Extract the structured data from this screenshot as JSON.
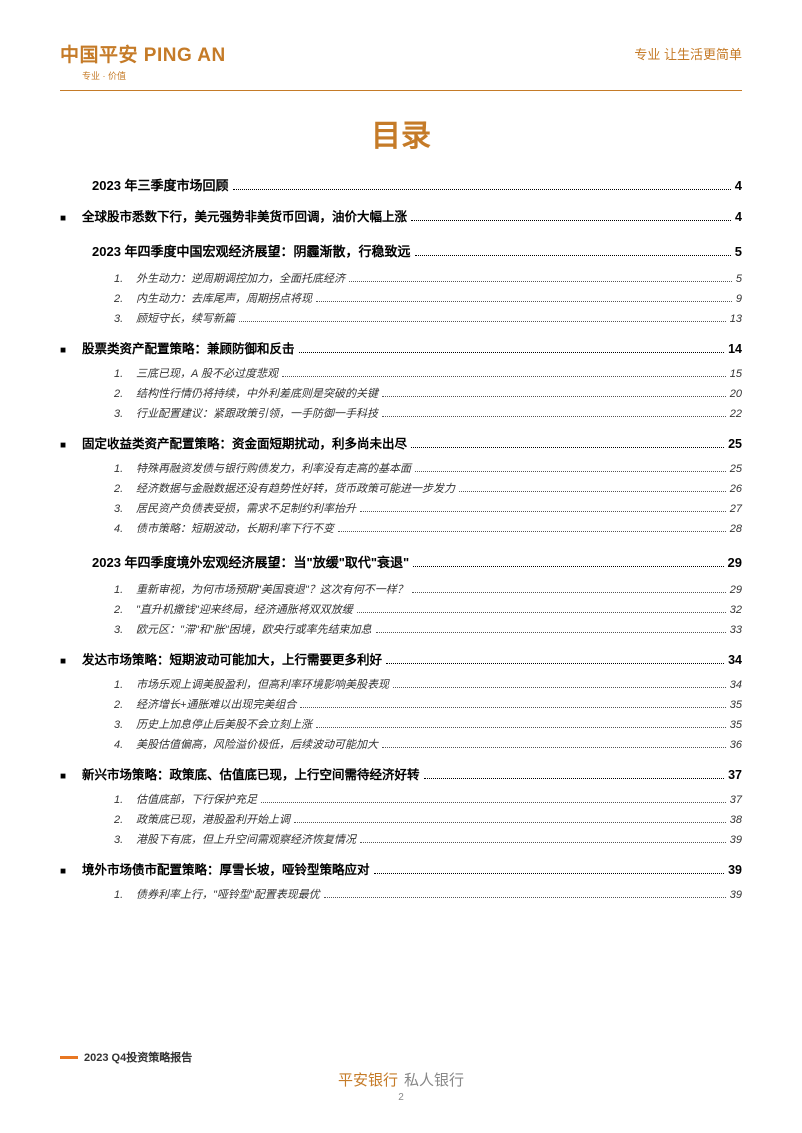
{
  "header": {
    "logo_main": "中国平安 PING AN",
    "logo_sub": "专业 · 价值",
    "slogan": "专业 让生活更简单"
  },
  "title": "目录",
  "toc": [
    {
      "level": 1,
      "text": "2023 年三季度市场回顾",
      "page": "4"
    },
    {
      "level": 2,
      "text": "全球股市悉数下行，美元强势非美货币回调，油价大幅上涨",
      "page": "4"
    },
    {
      "level": 1,
      "text": "2023 年四季度中国宏观经济展望：阴霾渐散，行稳致远",
      "page": "5"
    },
    {
      "level": 3,
      "num": "1.",
      "text": "外生动力：逆周期调控加力，全面托底经济",
      "page": "5"
    },
    {
      "level": 3,
      "num": "2.",
      "text": "内生动力：去库尾声，周期拐点将现",
      "page": "9"
    },
    {
      "level": 3,
      "num": "3.",
      "text": "顾短守长，续写新篇",
      "page": "13"
    },
    {
      "level": 2,
      "text": "股票类资产配置策略：兼顾防御和反击",
      "page": "14"
    },
    {
      "level": 3,
      "num": "1.",
      "text": "三底已现，A 股不必过度悲观",
      "page": "15"
    },
    {
      "level": 3,
      "num": "2.",
      "text": "结构性行情仍将持续，中外利差底则是突破的关键",
      "page": "20"
    },
    {
      "level": 3,
      "num": "3.",
      "text": "行业配置建议：紧跟政策引领，一手防御一手科技",
      "page": "22"
    },
    {
      "level": 2,
      "text": "固定收益类资产配置策略：资金面短期扰动，利多尚未出尽",
      "page": "25"
    },
    {
      "level": 3,
      "num": "1.",
      "text": "特殊再融资发债与银行购债发力，利率没有走高的基本面",
      "page": "25"
    },
    {
      "level": 3,
      "num": "2.",
      "text": "经济数据与金融数据还没有趋势性好转，货币政策可能进一步发力",
      "page": "26"
    },
    {
      "level": 3,
      "num": "3.",
      "text": "居民资产负债表受损，需求不足制约利率抬升",
      "page": "27"
    },
    {
      "level": 3,
      "num": "4.",
      "text": "债市策略：短期波动，长期利率下行不变",
      "page": "28"
    },
    {
      "level": 1,
      "text": "2023 年四季度境外宏观经济展望：当\"放缓\"取代\"衰退\"",
      "page": "29"
    },
    {
      "level": 3,
      "num": "1.",
      "text": "重新审视，为何市场预期\"美国衰退\"？这次有何不一样？",
      "page": "29"
    },
    {
      "level": 3,
      "num": "2.",
      "text": "\"直升机撒钱\"迎来终局，经济通胀将双双放缓",
      "page": "32"
    },
    {
      "level": 3,
      "num": "3.",
      "text": "欧元区：\"滞\"和\"胀\"困境，欧央行或率先结束加息",
      "page": "33"
    },
    {
      "level": 2,
      "text": "发达市场策略：短期波动可能加大，上行需要更多利好",
      "page": "34"
    },
    {
      "level": 3,
      "num": "1.",
      "text": "市场乐观上调美股盈利，但高利率环境影响美股表现",
      "page": "34"
    },
    {
      "level": 3,
      "num": "2.",
      "text": "经济增长+通胀难以出现完美组合",
      "page": "35"
    },
    {
      "level": 3,
      "num": "3.",
      "text": "历史上加息停止后美股不会立刻上涨",
      "page": "35"
    },
    {
      "level": 3,
      "num": "4.",
      "text": "美股估值偏高，风险溢价极低，后续波动可能加大",
      "page": "36"
    },
    {
      "level": 2,
      "text": "新兴市场策略：政策底、估值底已现，上行空间需待经济好转",
      "page": "37"
    },
    {
      "level": 3,
      "num": "1.",
      "text": "估值底部，下行保护充足",
      "page": "37"
    },
    {
      "level": 3,
      "num": "2.",
      "text": "政策底已现，港股盈利开始上调",
      "page": "38"
    },
    {
      "level": 3,
      "num": "3.",
      "text": "港股下有底，但上升空间需观察经济恢复情况",
      "page": "39"
    },
    {
      "level": 2,
      "text": "境外市场债市配置策略：厚雪长坡，哑铃型策略应对",
      "page": "39"
    },
    {
      "level": 3,
      "num": "1.",
      "text": "债券利率上行，\"哑铃型\"配置表现最优",
      "page": "39"
    }
  ],
  "footer": {
    "report_label": "2023 Q4投资策略报告",
    "brand_a": "平安银行",
    "brand_b": "私人银行",
    "page_number": "2"
  },
  "colors": {
    "accent": "#c57b28",
    "orange": "#e87722",
    "text": "#000000",
    "muted": "#888888"
  }
}
